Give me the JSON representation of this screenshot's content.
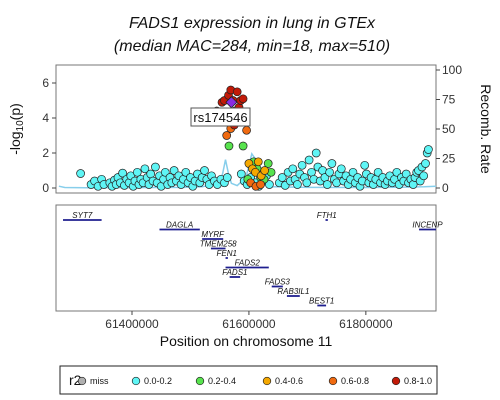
{
  "chart_data": {
    "type": "scatter",
    "title_line1": "FADS1 expression in lung in GTEx",
    "title_line2": "(median MAC=284, min=18, max=510)",
    "ylabel": "-log",
    "ylabel_sub": "10",
    "ylabel_p": "(p)",
    "y2label": "Recomb. Rate",
    "xlabel": "Position on chromosome 11",
    "xlim": [
      61270000,
      61920000
    ],
    "ylim": [
      -0.25,
      6.8
    ],
    "y2lim": [
      -4,
      104
    ],
    "yticks": [
      "0",
      "2",
      "4",
      "6"
    ],
    "y2ticks": [
      "0",
      "25",
      "50",
      "75",
      "100"
    ],
    "xticks": [
      "61400000",
      "61600000",
      "61800000"
    ],
    "lead_snp": {
      "label": "rs174546",
      "x": 61570000,
      "y": 4.9
    },
    "legend": {
      "title": "r2",
      "placement": "bottom",
      "entries": [
        {
          "label": "miss",
          "color": "#b0b0b0"
        },
        {
          "label": "0.0-0.2",
          "color": "#5ff5f5"
        },
        {
          "label": "0.2-0.4",
          "color": "#58e34e"
        },
        {
          "label": "0.4-0.6",
          "color": "#f5a800"
        },
        {
          "label": "0.6-0.8",
          "color": "#f06a10"
        },
        {
          "label": "0.8-1.0",
          "color": "#c21a08"
        }
      ]
    },
    "lead_color": "#8a2be2",
    "recomb_color": "#87ceeb",
    "gene_color": "#1f1f8f",
    "genes": [
      {
        "name": "SYT7",
        "start": 61282000,
        "end": 61348000,
        "row": 0
      },
      {
        "name": "FTH1",
        "start": 61731000,
        "end": 61735000,
        "row": 0
      },
      {
        "name": "INCENP",
        "start": 61891000,
        "end": 61920000,
        "row": 1
      },
      {
        "name": "DAGLA",
        "start": 61447000,
        "end": 61516000,
        "row": 1
      },
      {
        "name": "MYRF",
        "start": 61520000,
        "end": 61556000,
        "row": 2
      },
      {
        "name": "TMEM258",
        "start": 61535000,
        "end": 61560000,
        "row": 3
      },
      {
        "name": "FEN1",
        "start": 61560000,
        "end": 61564000,
        "row": 4
      },
      {
        "name": "FADS2",
        "start": 61560000,
        "end": 61634000,
        "row": 5
      },
      {
        "name": "FADS1",
        "start": 61567000,
        "end": 61585000,
        "row": 6
      },
      {
        "name": "FADS3",
        "start": 61639000,
        "end": 61658000,
        "row": 7
      },
      {
        "name": "RAB3IL1",
        "start": 61665000,
        "end": 61687000,
        "row": 8
      },
      {
        "name": "BEST1",
        "start": 61717000,
        "end": 61732000,
        "row": 9
      }
    ],
    "recomb": [
      [
        61275000,
        1.5
      ],
      [
        61285000,
        0.4
      ],
      [
        61320000,
        0.2
      ],
      [
        61380000,
        0.3
      ],
      [
        61440000,
        0.4
      ],
      [
        61490000,
        0.5
      ],
      [
        61520000,
        1.0
      ],
      [
        61540000,
        3.0
      ],
      [
        61550000,
        6.0
      ],
      [
        61555000,
        12.0
      ],
      [
        61560000,
        24.0
      ],
      [
        61565000,
        12.0
      ],
      [
        61570000,
        4.0
      ],
      [
        61580000,
        2.0
      ],
      [
        61595000,
        9.0
      ],
      [
        61605000,
        29.0
      ],
      [
        61612000,
        24.0
      ],
      [
        61620000,
        5.0
      ],
      [
        61640000,
        1.0
      ],
      [
        61700000,
        0.5
      ],
      [
        61800000,
        0.4
      ],
      [
        61860000,
        0.6
      ],
      [
        61900000,
        1.0
      ],
      [
        61920000,
        1.5
      ]
    ],
    "points_cyan": [
      [
        61312000,
        0.83
      ],
      [
        61330000,
        0.2
      ],
      [
        61336000,
        0.4
      ],
      [
        61342000,
        0.1
      ],
      [
        61348000,
        0.5
      ],
      [
        61352000,
        0.2
      ],
      [
        61362000,
        0.3
      ],
      [
        61366000,
        0.1
      ],
      [
        61370000,
        0.45
      ],
      [
        61373000,
        0.2
      ],
      [
        61376000,
        0.6
      ],
      [
        61380000,
        0.3
      ],
      [
        61384000,
        0.85
      ],
      [
        61387000,
        0.15
      ],
      [
        61391000,
        0.5
      ],
      [
        61395000,
        0.3
      ],
      [
        61398000,
        0.7
      ],
      [
        61402000,
        0.1
      ],
      [
        61405000,
        0.4
      ],
      [
        61409000,
        0.9
      ],
      [
        61412000,
        0.2
      ],
      [
        61415000,
        0.5
      ],
      [
        61419000,
        0.3
      ],
      [
        61422000,
        1.1
      ],
      [
        61426000,
        0.6
      ],
      [
        61429000,
        0.2
      ],
      [
        61432000,
        0.8
      ],
      [
        61436000,
        0.4
      ],
      [
        61440000,
        1.2
      ],
      [
        61443000,
        0.3
      ],
      [
        61447000,
        0.7
      ],
      [
        61450000,
        0.1
      ],
      [
        61454000,
        0.5
      ],
      [
        61457000,
        0.9
      ],
      [
        61461000,
        0.2
      ],
      [
        61465000,
        0.6
      ],
      [
        61468000,
        0.3
      ],
      [
        61472000,
        1.0
      ],
      [
        61476000,
        0.4
      ],
      [
        61480000,
        0.7
      ],
      [
        61484000,
        0.2
      ],
      [
        61488000,
        0.5
      ],
      [
        61492000,
        0.9
      ],
      [
        61496000,
        0.3
      ],
      [
        61500000,
        0.6
      ],
      [
        61504000,
        0.1
      ],
      [
        61508000,
        0.4
      ],
      [
        61512000,
        0.8
      ],
      [
        61516000,
        0.3
      ],
      [
        61520000,
        0.6
      ],
      [
        61524000,
        1.0
      ],
      [
        61528000,
        0.5
      ],
      [
        61532000,
        0.2
      ],
      [
        61536000,
        0.7
      ],
      [
        61541000,
        0.4
      ],
      [
        61546000,
        0.2
      ],
      [
        61552000,
        0.5
      ],
      [
        61558000,
        0.3
      ],
      [
        61563000,
        0.6
      ],
      [
        61587000,
        0.8
      ],
      [
        61592000,
        0.4
      ],
      [
        61597000,
        0.2
      ],
      [
        61603000,
        0.6
      ],
      [
        61611000,
        0.3
      ],
      [
        61617000,
        0.1
      ],
      [
        61624000,
        0.4
      ],
      [
        61630000,
        0.7
      ],
      [
        61635000,
        0.2
      ],
      [
        61652000,
        0.3
      ],
      [
        61657000,
        0.6
      ],
      [
        61662000,
        0.15
      ],
      [
        61667000,
        0.9
      ],
      [
        61671000,
        0.4
      ],
      [
        61675000,
        1.1
      ],
      [
        61679000,
        0.5
      ],
      [
        61683000,
        0.2
      ],
      [
        61687000,
        0.8
      ],
      [
        61691000,
        1.3
      ],
      [
        61695000,
        0.6
      ],
      [
        61699000,
        0.3
      ],
      [
        61703000,
        1.6
      ],
      [
        61707000,
        0.9
      ],
      [
        61711000,
        0.5
      ],
      [
        61715000,
        2.0
      ],
      [
        61718000,
        1.2
      ],
      [
        61722000,
        0.4
      ],
      [
        61726000,
        1.0
      ],
      [
        61730000,
        0.6
      ],
      [
        61734000,
        0.2
      ],
      [
        61738000,
        0.9
      ],
      [
        61742000,
        1.4
      ],
      [
        61746000,
        0.5
      ],
      [
        61750000,
        0.3
      ],
      [
        61754000,
        0.8
      ],
      [
        61758000,
        1.1
      ],
      [
        61762000,
        0.4
      ],
      [
        61766000,
        0.7
      ],
      [
        61770000,
        0.2
      ],
      [
        61774000,
        0.5
      ],
      [
        61778000,
        0.9
      ],
      [
        61782000,
        0.3
      ],
      [
        61786000,
        0.6
      ],
      [
        61790000,
        0.1
      ],
      [
        61794000,
        0.4
      ],
      [
        61798000,
        1.3
      ],
      [
        61801000,
        0.8
      ],
      [
        61805000,
        0.3
      ],
      [
        61809000,
        0.6
      ],
      [
        61813000,
        0.2
      ],
      [
        61817000,
        0.5
      ],
      [
        61821000,
        0.9
      ],
      [
        61825000,
        0.3
      ],
      [
        61829000,
        0.6
      ],
      [
        61833000,
        0.2
      ],
      [
        61837000,
        0.4
      ],
      [
        61841000,
        0.7
      ],
      [
        61845000,
        0.3
      ],
      [
        61849000,
        0.5
      ],
      [
        61853000,
        0.9
      ],
      [
        61857000,
        0.2
      ],
      [
        61861000,
        0.6
      ],
      [
        61865000,
        0.4
      ],
      [
        61869000,
        0.8
      ],
      [
        61873000,
        0.3
      ],
      [
        61877000,
        0.5
      ],
      [
        61881000,
        0.2
      ],
      [
        61884000,
        0.6
      ],
      [
        61887000,
        0.9
      ],
      [
        61890000,
        1.0
      ],
      [
        61893000,
        0.4
      ],
      [
        61896000,
        1.2
      ],
      [
        61899000,
        0.7
      ],
      [
        61902000,
        1.4
      ],
      [
        61905000,
        2.0
      ],
      [
        61907000,
        2.2
      ]
    ],
    "points_green": [
      [
        61566000,
        2.4
      ],
      [
        61590000,
        2.4
      ],
      [
        61598000,
        0.5
      ],
      [
        61608000,
        1.5
      ],
      [
        61614000,
        1.1
      ],
      [
        61620000,
        0.6
      ],
      [
        61626000,
        0.5
      ],
      [
        61633000,
        1.4
      ],
      [
        61638000,
        0.9
      ]
    ],
    "points_yellow": [
      [
        61600000,
        1.4
      ],
      [
        61606000,
        1.1
      ],
      [
        61611000,
        0.9
      ],
      [
        61616000,
        1.5
      ],
      [
        61621000,
        0.7
      ],
      [
        61627000,
        1.0
      ]
    ],
    "points_orange": [
      [
        61562000,
        3.0
      ],
      [
        61569000,
        3.4
      ],
      [
        61596000,
        3.3
      ],
      [
        61603000,
        0.3
      ],
      [
        61612000,
        0.1
      ],
      [
        61620000,
        0.2
      ]
    ],
    "points_red": [
      [
        61545000,
        4.4
      ],
      [
        61550000,
        4.0
      ],
      [
        61554000,
        4.9
      ],
      [
        61558000,
        5.0
      ],
      [
        61561000,
        4.2
      ],
      [
        61565000,
        5.3
      ],
      [
        61569000,
        5.6
      ],
      [
        61573000,
        5.0
      ],
      [
        61576000,
        4.4
      ],
      [
        61580000,
        5.5
      ],
      [
        61583000,
        4.6
      ],
      [
        61586000,
        5.0
      ],
      [
        61590000,
        5.1
      ],
      [
        61593000,
        4.3
      ],
      [
        61575000,
        3.6
      ]
    ]
  }
}
